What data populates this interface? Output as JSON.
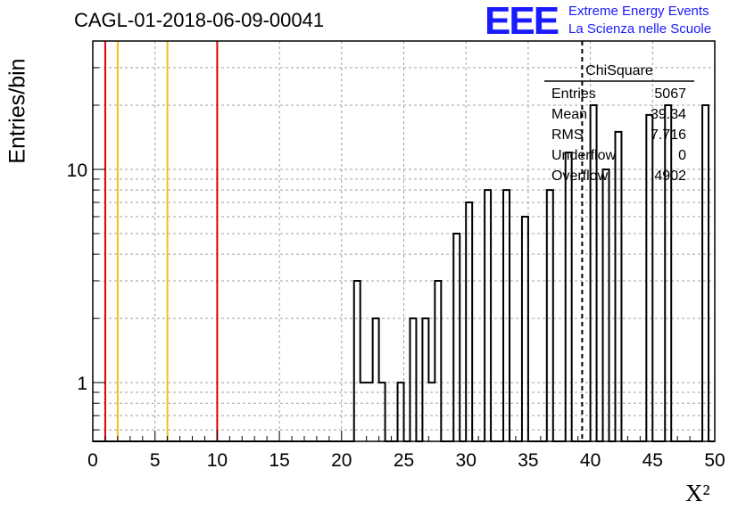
{
  "chart_data": {
    "type": "bar",
    "title": "CAGL-01-2018-06-09-00041",
    "xlabel": "X²",
    "ylabel": "Entries/bin",
    "xlim": [
      0,
      50
    ],
    "ylim": [
      0.53,
      40
    ],
    "log_y": true,
    "grid": true,
    "x_ticks": [
      0,
      5,
      10,
      15,
      20,
      25,
      30,
      35,
      40,
      45,
      50
    ],
    "y_ticks": [
      1,
      10
    ],
    "bin_width": 0.5,
    "bins": [
      {
        "x": 21.0,
        "y": 3
      },
      {
        "x": 21.5,
        "y": 1
      },
      {
        "x": 22.0,
        "y": 1
      },
      {
        "x": 22.5,
        "y": 2
      },
      {
        "x": 23.0,
        "y": 1
      },
      {
        "x": 24.5,
        "y": 1
      },
      {
        "x": 25.5,
        "y": 2
      },
      {
        "x": 26.5,
        "y": 2
      },
      {
        "x": 27.0,
        "y": 1
      },
      {
        "x": 27.5,
        "y": 3
      },
      {
        "x": 29.0,
        "y": 5
      },
      {
        "x": 30.0,
        "y": 7
      },
      {
        "x": 31.5,
        "y": 8
      },
      {
        "x": 33.0,
        "y": 8
      },
      {
        "x": 34.5,
        "y": 6
      },
      {
        "x": 36.5,
        "y": 8
      },
      {
        "x": 38.0,
        "y": 12
      },
      {
        "x": 40.0,
        "y": 20
      },
      {
        "x": 41.0,
        "y": 10
      },
      {
        "x": 42.0,
        "y": 15
      },
      {
        "x": 44.5,
        "y": 18
      },
      {
        "x": 46.0,
        "y": 20
      },
      {
        "x": 49.0,
        "y": 20
      }
    ],
    "vertical_lines": [
      {
        "x": 1,
        "color": "#e00000",
        "style": "solid"
      },
      {
        "x": 2,
        "color": "#f0c020",
        "style": "solid"
      },
      {
        "x": 6,
        "color": "#f0c020",
        "style": "solid"
      },
      {
        "x": 10,
        "color": "#e00000",
        "style": "solid"
      },
      {
        "x": 39.34,
        "color": "#000000",
        "style": "dashed"
      }
    ],
    "stats_box": {
      "title": "ChiSquare",
      "rows": [
        {
          "label": "Entries",
          "value": "5067"
        },
        {
          "label": "Mean",
          "value": "39.34"
        },
        {
          "label": "RMS",
          "value": "7.716"
        },
        {
          "label": "Underflow",
          "value": "0"
        },
        {
          "label": "Overflow",
          "value": "4902"
        }
      ]
    }
  },
  "logo": {
    "mark": "EEE",
    "line1": "Extreme Energy Events",
    "line2": "La Scienza nelle Scuole"
  },
  "colors": {
    "logo": "#1a1aff",
    "grid": "#a0a0a0"
  }
}
